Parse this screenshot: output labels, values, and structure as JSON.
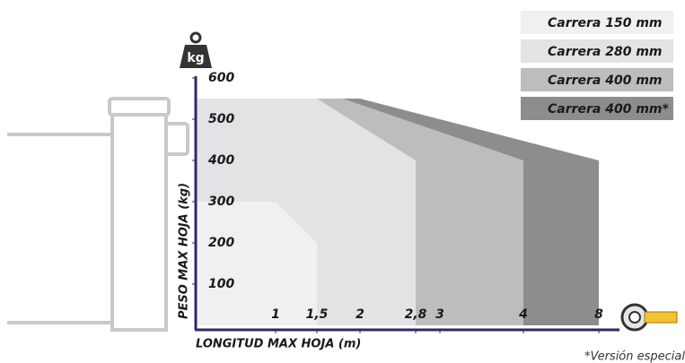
{
  "chart_data": {
    "type": "area",
    "y_label": "PESO MAX HOJA (kg)",
    "x_label": "LONGITUD MAX HOJA (m)",
    "unit_icon": "kg",
    "footnote": "*Versión especial",
    "xlim": [
      0,
      8
    ],
    "ylim": [
      0,
      600
    ],
    "xticks": [
      1,
      {
        "value": 1.5,
        "label": "1,5"
      },
      2,
      {
        "value": 2.8,
        "label": "2,8"
      },
      3,
      4,
      8
    ],
    "yticks": [
      100,
      200,
      300,
      400,
      500,
      600
    ],
    "series": [
      {
        "name": "Carrera 150 mm",
        "color": "#f0f0f1",
        "x": [
          0,
          1,
          1.5,
          1.5
        ],
        "values": [
          300,
          300,
          200,
          0
        ]
      },
      {
        "name": "Carrera 280 mm",
        "color": "#e3e3e5",
        "x": [
          0,
          1.5,
          2.8,
          2.8
        ],
        "values": [
          550,
          550,
          400,
          0
        ]
      },
      {
        "name": "Carrera 400 mm",
        "color": "#bdbdbf",
        "x": [
          0,
          1.8,
          4,
          4
        ],
        "values": [
          550,
          550,
          400,
          0
        ]
      },
      {
        "name": "Carrera 400 mm*",
        "color": "#8d8d8f",
        "x": [
          0,
          2,
          8,
          8
        ],
        "values": [
          550,
          550,
          400,
          0
        ]
      }
    ]
  }
}
